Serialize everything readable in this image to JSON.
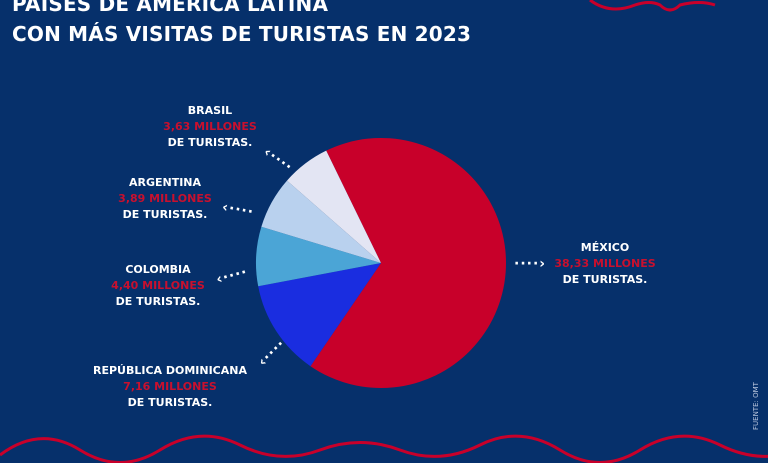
{
  "title_line1": "PAÍSES DE AMÉRICA LATINA",
  "title_line2": "CON MÁS VISITAS DE TURISTAS EN 2023",
  "source": "FUENTE: OMT",
  "unit_suffix": "DE TURISTAS.",
  "chart_data": {
    "type": "pie",
    "title": "PAÍSES DE AMÉRICA LATINA CON MÁS VISITAS DE TURISTAS EN 2023",
    "categories": [
      "México",
      "República Dominicana",
      "Colombia",
      "Argentina",
      "Brasil"
    ],
    "labels": [
      "MÉXICO",
      "REPÚBLICA DOMINICANA",
      "COLOMBIA",
      "ARGENTINA",
      "BRASIL"
    ],
    "values": [
      38.33,
      7.16,
      4.4,
      3.89,
      3.63
    ],
    "value_labels": [
      "38,33 MILLONES",
      "7,16 MILLONES",
      "4,40 MILLONES",
      "3,89 MILLONES",
      "3,63 MILLONES"
    ],
    "unit": "millones de turistas",
    "colors": [
      "#c8002a",
      "#1a2de0",
      "#4ba5d6",
      "#b9d1ee",
      "#e3e5f3"
    ]
  }
}
